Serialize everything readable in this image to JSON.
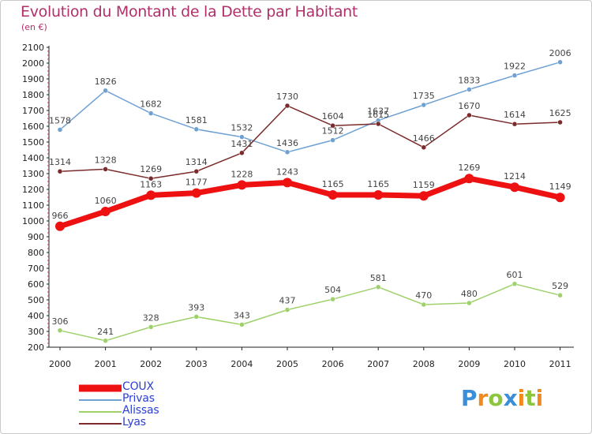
{
  "header": {
    "title": "Evolution du Montant de la Dette par Habitant",
    "subtitle": "(en €)"
  },
  "chart_data": {
    "type": "line",
    "title": "Evolution du Montant de la Dette par Habitant",
    "subtitle": "(en €)",
    "xlabel": "",
    "ylabel": "",
    "categories": [
      "2000",
      "2001",
      "2002",
      "2003",
      "2004",
      "2005",
      "2006",
      "2007",
      "2008",
      "2009",
      "2010",
      "2011"
    ],
    "ylim": [
      200,
      2100
    ],
    "yticks": [
      200,
      300,
      400,
      500,
      600,
      700,
      800,
      900,
      1000,
      1100,
      1200,
      1300,
      1400,
      1500,
      1600,
      1700,
      1800,
      1900,
      2000,
      2100
    ],
    "grid": false,
    "legend_position": "bottom-left",
    "series": [
      {
        "name": "COUX",
        "color": "#ee1111",
        "values": [
          966,
          1060,
          1163,
          1177,
          1228,
          1243,
          1165,
          1165,
          1159,
          1269,
          1214,
          1149
        ]
      },
      {
        "name": "Privas",
        "color": "#6fa1d3",
        "values": [
          1578,
          1826,
          1682,
          1581,
          1532,
          1436,
          1512,
          1637,
          1735,
          1833,
          1922,
          2006
        ]
      },
      {
        "name": "Alissas",
        "color": "#9ed16a",
        "values": [
          306,
          241,
          328,
          393,
          343,
          437,
          504,
          581,
          470,
          480,
          601,
          529
        ]
      },
      {
        "name": "Lyas",
        "color": "#7b2b2b",
        "values": [
          1314,
          1328,
          1269,
          1314,
          1431,
          1730,
          1604,
          1615,
          1466,
          1670,
          1614,
          1625
        ]
      }
    ]
  },
  "legend": {
    "items": [
      {
        "label": "COUX",
        "color": "#ee1111"
      },
      {
        "label": "Privas",
        "color": "#6fa1d3"
      },
      {
        "label": "Alissas",
        "color": "#9ed16a"
      },
      {
        "label": "Lyas",
        "color": "#7b2b2b"
      }
    ]
  },
  "logo": {
    "text": "Proxiti",
    "letters": [
      {
        "ch": "P",
        "color": "#3a8fd8"
      },
      {
        "ch": "r",
        "color": "#f08a1c"
      },
      {
        "ch": "o",
        "color": "#8cc63f"
      },
      {
        "ch": "x",
        "color": "#3a8fd8"
      },
      {
        "ch": "i",
        "color": "#f08a1c"
      },
      {
        "ch": "t",
        "color": "#8cc63f"
      },
      {
        "ch": "i",
        "color": "#f08a1c"
      }
    ]
  }
}
